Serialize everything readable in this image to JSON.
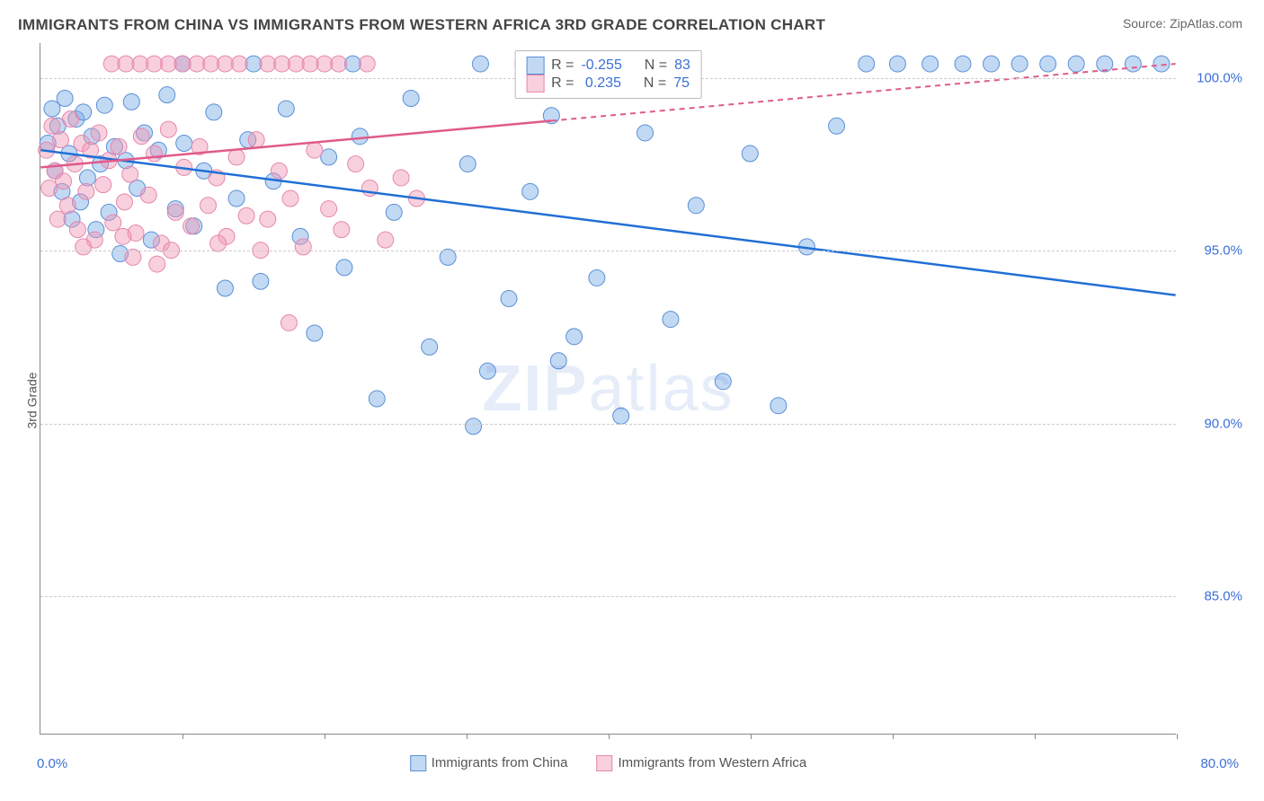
{
  "title": "IMMIGRANTS FROM CHINA VS IMMIGRANTS FROM WESTERN AFRICA 3RD GRADE CORRELATION CHART",
  "source_label": "Source: ",
  "source_value": "ZipAtlas.com",
  "watermark_a": "ZIP",
  "watermark_b": "atlas",
  "ylabel": "3rd Grade",
  "chart": {
    "type": "scatter",
    "xlim": [
      0,
      80
    ],
    "ylim": [
      81,
      101
    ],
    "x_tick_step": 10,
    "y_ticks": [
      85,
      90,
      95,
      100
    ],
    "y_tick_labels": [
      "85.0%",
      "90.0%",
      "95.0%",
      "100.0%"
    ],
    "x_start_label": "0.0%",
    "x_end_label": "80.0%",
    "grid_color": "#cccccc",
    "background_color": "#ffffff",
    "label_color": "#3b6fd6",
    "series": [
      {
        "name": "Immigrants from China",
        "color_fill": "rgba(120,170,230,0.45)",
        "color_stroke": "#5a8fd6",
        "trend_color": "#1f6fd6",
        "trend_dash": null,
        "trend": {
          "x1": 0,
          "y1": 97.9,
          "x2": 80,
          "y2": 93.7
        },
        "R_label": "R = ",
        "R": "-0.255",
        "N_label": "N = ",
        "N": "83",
        "marker_radius": 9,
        "points": [
          [
            0.5,
            98.1
          ],
          [
            0.8,
            99.1
          ],
          [
            1.0,
            97.3
          ],
          [
            1.2,
            98.6
          ],
          [
            1.5,
            96.7
          ],
          [
            1.7,
            99.4
          ],
          [
            2.0,
            97.8
          ],
          [
            2.2,
            95.9
          ],
          [
            2.5,
            98.8
          ],
          [
            2.8,
            96.4
          ],
          [
            3.0,
            99.0
          ],
          [
            3.3,
            97.1
          ],
          [
            3.6,
            98.3
          ],
          [
            3.9,
            95.6
          ],
          [
            4.2,
            97.5
          ],
          [
            4.5,
            99.2
          ],
          [
            4.8,
            96.1
          ],
          [
            5.2,
            98.0
          ],
          [
            5.6,
            94.9
          ],
          [
            6.0,
            97.6
          ],
          [
            6.4,
            99.3
          ],
          [
            6.8,
            96.8
          ],
          [
            7.3,
            98.4
          ],
          [
            7.8,
            95.3
          ],
          [
            8.3,
            97.9
          ],
          [
            8.9,
            99.5
          ],
          [
            9.5,
            96.2
          ],
          [
            10.1,
            98.1
          ],
          [
            10.8,
            95.7
          ],
          [
            11.5,
            97.3
          ],
          [
            12.2,
            99.0
          ],
          [
            13.0,
            93.9
          ],
          [
            13.8,
            96.5
          ],
          [
            14.6,
            98.2
          ],
          [
            15.5,
            94.1
          ],
          [
            16.4,
            97.0
          ],
          [
            17.3,
            99.1
          ],
          [
            18.3,
            95.4
          ],
          [
            19.3,
            92.6
          ],
          [
            20.3,
            97.7
          ],
          [
            21.4,
            94.5
          ],
          [
            22.5,
            98.3
          ],
          [
            23.7,
            90.7
          ],
          [
            24.9,
            96.1
          ],
          [
            26.1,
            99.4
          ],
          [
            27.4,
            92.2
          ],
          [
            28.7,
            94.8
          ],
          [
            30.1,
            97.5
          ],
          [
            30.5,
            89.9
          ],
          [
            31.5,
            91.5
          ],
          [
            33.0,
            93.6
          ],
          [
            34.5,
            96.7
          ],
          [
            36.0,
            98.9
          ],
          [
            36.5,
            91.8
          ],
          [
            37.6,
            92.5
          ],
          [
            39.2,
            94.2
          ],
          [
            40.9,
            90.2
          ],
          [
            42.6,
            98.4
          ],
          [
            44.4,
            93.0
          ],
          [
            46.2,
            96.3
          ],
          [
            48.1,
            91.2
          ],
          [
            50.0,
            97.8
          ],
          [
            52.0,
            90.5
          ],
          [
            54.0,
            95.1
          ],
          [
            56.1,
            98.6
          ],
          [
            58.2,
            100.4
          ],
          [
            60.4,
            100.4
          ],
          [
            62.7,
            100.4
          ],
          [
            65.0,
            100.4
          ],
          [
            67.0,
            100.4
          ],
          [
            69.0,
            100.4
          ],
          [
            71.0,
            100.4
          ],
          [
            73.0,
            100.4
          ],
          [
            75.0,
            100.4
          ],
          [
            77.0,
            100.4
          ],
          [
            79.0,
            100.4
          ],
          [
            34.0,
            100.4
          ],
          [
            38.0,
            100.4
          ],
          [
            42.0,
            100.4
          ],
          [
            22.0,
            100.4
          ],
          [
            15.0,
            100.4
          ],
          [
            10.0,
            100.4
          ],
          [
            31.0,
            100.4
          ]
        ]
      },
      {
        "name": "Immigrants from Western Africa",
        "color_fill": "rgba(240,150,180,0.45)",
        "color_stroke": "#e686ad",
        "trend_color": "#e05a8a",
        "trend_dash": "6,5",
        "trend": {
          "x1": 0,
          "y1": 97.4,
          "x2": 80,
          "y2": 100.4
        },
        "R_label": "R = ",
        "R": "0.235",
        "N_label": "N = ",
        "N": "75",
        "marker_radius": 9,
        "points": [
          [
            0.4,
            97.9
          ],
          [
            0.6,
            96.8
          ],
          [
            0.8,
            98.6
          ],
          [
            1.0,
            97.3
          ],
          [
            1.2,
            95.9
          ],
          [
            1.4,
            98.2
          ],
          [
            1.6,
            97.0
          ],
          [
            1.9,
            96.3
          ],
          [
            2.1,
            98.8
          ],
          [
            2.4,
            97.5
          ],
          [
            2.6,
            95.6
          ],
          [
            2.9,
            98.1
          ],
          [
            3.2,
            96.7
          ],
          [
            3.5,
            97.9
          ],
          [
            3.8,
            95.3
          ],
          [
            4.1,
            98.4
          ],
          [
            4.4,
            96.9
          ],
          [
            4.8,
            97.6
          ],
          [
            5.1,
            95.8
          ],
          [
            5.5,
            98.0
          ],
          [
            5.9,
            96.4
          ],
          [
            6.3,
            97.2
          ],
          [
            6.7,
            95.5
          ],
          [
            7.1,
            98.3
          ],
          [
            7.6,
            96.6
          ],
          [
            8.0,
            97.8
          ],
          [
            8.5,
            95.2
          ],
          [
            9.0,
            98.5
          ],
          [
            9.5,
            96.1
          ],
          [
            10.1,
            97.4
          ],
          [
            10.6,
            95.7
          ],
          [
            11.2,
            98.0
          ],
          [
            11.8,
            96.3
          ],
          [
            12.4,
            97.1
          ],
          [
            13.1,
            95.4
          ],
          [
            13.8,
            97.7
          ],
          [
            14.5,
            96.0
          ],
          [
            15.2,
            98.2
          ],
          [
            16.0,
            95.9
          ],
          [
            16.8,
            97.3
          ],
          [
            17.6,
            96.5
          ],
          [
            18.5,
            95.1
          ],
          [
            19.3,
            97.9
          ],
          [
            20.3,
            96.2
          ],
          [
            21.2,
            95.6
          ],
          [
            22.2,
            97.5
          ],
          [
            23.2,
            96.8
          ],
          [
            24.3,
            95.3
          ],
          [
            25.4,
            97.1
          ],
          [
            26.5,
            96.5
          ],
          [
            5.0,
            100.4
          ],
          [
            7.0,
            100.4
          ],
          [
            9.0,
            100.4
          ],
          [
            11.0,
            100.4
          ],
          [
            12.0,
            100.4
          ],
          [
            14.0,
            100.4
          ],
          [
            16.0,
            100.4
          ],
          [
            18.0,
            100.4
          ],
          [
            20.0,
            100.4
          ],
          [
            13.0,
            100.4
          ],
          [
            6.0,
            100.4
          ],
          [
            8.0,
            100.4
          ],
          [
            10.0,
            100.4
          ],
          [
            17.0,
            100.4
          ],
          [
            19.0,
            100.4
          ],
          [
            21.0,
            100.4
          ],
          [
            23.0,
            100.4
          ],
          [
            17.5,
            92.9
          ],
          [
            15.5,
            95.0
          ],
          [
            12.5,
            95.2
          ],
          [
            9.2,
            95.0
          ],
          [
            6.5,
            94.8
          ],
          [
            3.0,
            95.1
          ],
          [
            5.8,
            95.4
          ],
          [
            8.2,
            94.6
          ]
        ]
      }
    ]
  },
  "legend": {
    "swatch_blue_fill": "rgba(120,170,230,0.45)",
    "swatch_blue_stroke": "#5a8fd6",
    "swatch_pink_fill": "rgba(240,150,180,0.45)",
    "swatch_pink_stroke": "#e686ad"
  }
}
